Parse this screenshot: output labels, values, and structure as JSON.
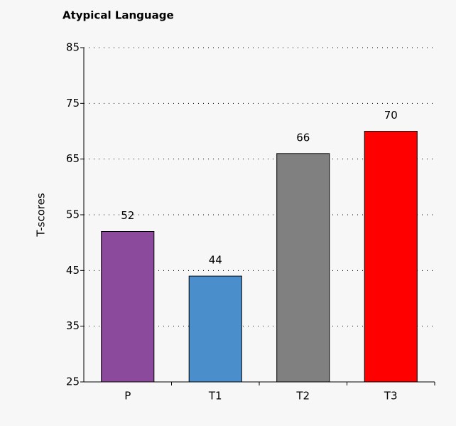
{
  "chart_data": {
    "type": "bar",
    "title": "Atypical Language",
    "y_label": "T-scores",
    "categories": [
      "P",
      "T1",
      "T2",
      "T3"
    ],
    "values": [
      52,
      44,
      66,
      70
    ],
    "colors": [
      "#8b4a9c",
      "#4a8fcc",
      "#808080",
      "#ff0000"
    ],
    "ylim": [
      25,
      85
    ],
    "yticks": [
      25,
      35,
      45,
      55,
      65,
      75,
      85
    ],
    "grid": true
  }
}
